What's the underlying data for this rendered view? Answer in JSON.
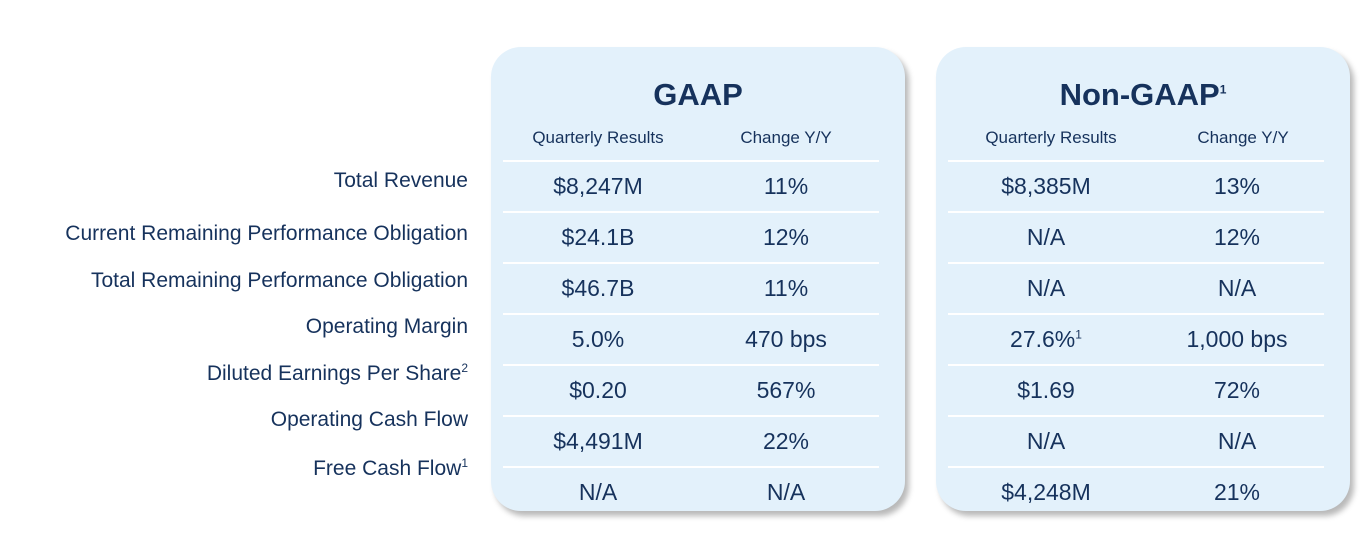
{
  "row_labels": [
    {
      "text": "Total Revenue",
      "sup": ""
    },
    {
      "text": "Current Remaining Performance Obligation",
      "sup": ""
    },
    {
      "text": "Total Remaining Performance Obligation",
      "sup": ""
    },
    {
      "text": "Operating Margin",
      "sup": ""
    },
    {
      "text": "Diluted Earnings Per Share",
      "sup": "2"
    },
    {
      "text": "Operating Cash Flow",
      "sup": ""
    },
    {
      "text": "Free Cash Flow",
      "sup": "1"
    }
  ],
  "gaap": {
    "title": "GAAP",
    "title_sup": "",
    "col1": "Quarterly Results",
    "col2": "Change Y/Y",
    "rows": [
      {
        "v1": "$8,247M",
        "v1_sup": "",
        "v2": "11%"
      },
      {
        "v1": "$24.1B",
        "v1_sup": "",
        "v2": "12%"
      },
      {
        "v1": "$46.7B",
        "v1_sup": "",
        "v2": "11%"
      },
      {
        "v1": "5.0%",
        "v1_sup": "",
        "v2": "470 bps"
      },
      {
        "v1": "$0.20",
        "v1_sup": "",
        "v2": "567%"
      },
      {
        "v1": "$4,491M",
        "v1_sup": "",
        "v2": "22%"
      },
      {
        "v1": "N/A",
        "v1_sup": "",
        "v2": "N/A"
      }
    ]
  },
  "nongaap": {
    "title": "Non-GAAP",
    "title_sup": "1",
    "col1": "Quarterly Results",
    "col2": "Change Y/Y",
    "rows": [
      {
        "v1": "$8,385M",
        "v1_sup": "",
        "v2": "13%"
      },
      {
        "v1": "N/A",
        "v1_sup": "",
        "v2": "12%"
      },
      {
        "v1": "N/A",
        "v1_sup": "",
        "v2": "N/A"
      },
      {
        "v1": "27.6%",
        "v1_sup": "1",
        "v2": "1,000 bps"
      },
      {
        "v1": "$1.69",
        "v1_sup": "",
        "v2": "72%"
      },
      {
        "v1": "N/A",
        "v1_sup": "",
        "v2": "N/A"
      },
      {
        "v1": "$4,248M",
        "v1_sup": "",
        "v2": "21%"
      }
    ]
  }
}
